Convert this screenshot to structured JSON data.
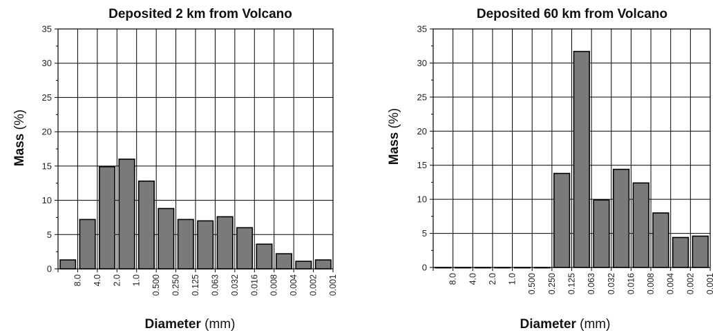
{
  "chart_data": [
    {
      "type": "bar",
      "title": "Deposited 2 km from Volcano",
      "ylabel_bold": "Mass",
      "ylabel_unit": "(%)",
      "xlabel_bold": "Diameter",
      "xlabel_unit": "(mm)",
      "ylim": [
        0,
        35
      ],
      "yticks": [
        "0",
        "5",
        "10",
        "15",
        "20",
        "25",
        "30",
        "35"
      ],
      "xticks": [
        "8.0",
        "4.0",
        "2.0",
        "1.0",
        "0.500",
        "0.250",
        "0.125",
        "0.063",
        "0.032",
        "0.016",
        "0.008",
        "0.004",
        "0.002",
        "0.001"
      ],
      "values": [
        1.3,
        7.2,
        14.9,
        16.0,
        12.8,
        8.8,
        7.2,
        7.0,
        7.6,
        6.0,
        3.6,
        2.2,
        1.1,
        1.3
      ],
      "grid": true
    },
    {
      "type": "bar",
      "title": "Deposited 60 km from Volcano",
      "ylabel_bold": "Mass",
      "ylabel_unit": "(%)",
      "xlabel_bold": "Diameter",
      "xlabel_unit": "(mm)",
      "ylim": [
        0,
        35
      ],
      "yticks": [
        "0",
        "5",
        "10",
        "15",
        "20",
        "25",
        "30",
        "35"
      ],
      "xticks": [
        "8.0",
        "4.0",
        "2.0",
        "1.0",
        "0.500",
        "0.250",
        "0.125",
        "0.063",
        "0.032",
        "0.016",
        "0.008",
        "0.004",
        "0.002",
        "0.001"
      ],
      "values": [
        0,
        0,
        0,
        0,
        0,
        0,
        13.8,
        31.7,
        9.9,
        14.4,
        12.4,
        8.0,
        4.4,
        4.6
      ],
      "grid": true
    }
  ]
}
